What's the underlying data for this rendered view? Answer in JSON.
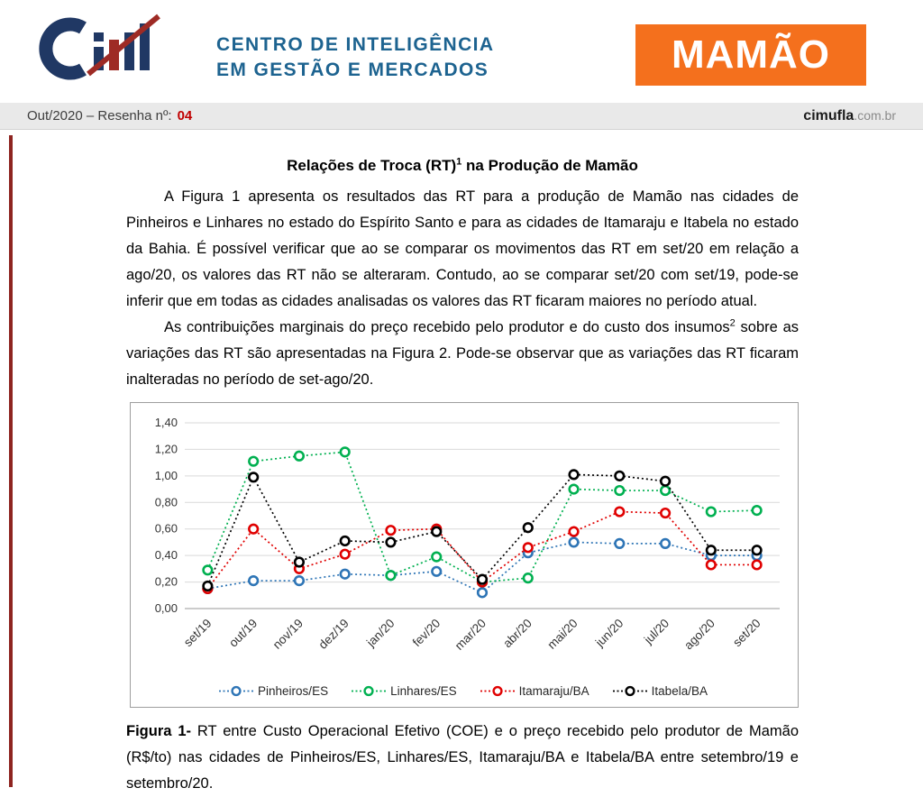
{
  "header": {
    "org_line1": "CENTRO DE INTELIGÊNCIA",
    "org_line2": "EM GESTÃO E MERCADOS",
    "badge": "MAMÃO",
    "logo_name": "CIM"
  },
  "meta": {
    "issue_label": "Out/2020 – Resenha nº:",
    "issue_number": "04",
    "site_name": "cimufla",
    "site_domain": ".com.br"
  },
  "colors": {
    "badge_orange": "#F4701D",
    "brand_blue": "#1D6390",
    "logo_navy": "#203864",
    "logo_red": "#9E2B25",
    "issue_red": "#C00000",
    "accent_rule_red": "#8E2420"
  },
  "article": {
    "title_pre": "Relações de Troca (RT)",
    "title_sup": "1",
    "title_post": " na Produção de Mamão",
    "para1": "A Figura 1 apresenta os resultados das RT para a produção de Mamão nas cidades de Pinheiros e Linhares no estado do Espírito Santo e para as cidades de Itamaraju e Itabela no estado da Bahia. É possível verificar que ao se comparar os movimentos das RT em set/20 em relação a ago/20, os valores das RT não se alteraram. Contudo, ao se comparar set/20 com set/19, pode-se inferir que em todas as cidades analisadas os valores das RT ficaram maiores no período atual.",
    "para2_pre": "As contribuições marginais do preço recebido pelo produtor e do custo dos insumos",
    "para2_sup": "2",
    "para2_post": " sobre as variações das RT são apresentadas na Figura 2. Pode-se observar que as variações das RT ficaram inalteradas no período de set-ago/20.",
    "caption_label": "Figura 1-",
    "caption_text": " RT entre Custo Operacional Efetivo (COE) e o preço recebido pelo produtor de Mamão (R$/to) nas cidades de Pinheiros/ES, Linhares/ES, Itamaraju/BA e Itabela/BA entre setembro/19 e setembro/20."
  },
  "chart_data": {
    "type": "line",
    "line_style": "dotted",
    "marker": "open-circle",
    "grid": true,
    "legend_position": "bottom",
    "x": [
      "set/19",
      "out/19",
      "nov/19",
      "dez/19",
      "jan/20",
      "fev/20",
      "mar/20",
      "abr/20",
      "mai/20",
      "jun/20",
      "jul/20",
      "ago/20",
      "set/20"
    ],
    "ylim": [
      0,
      1.4
    ],
    "ytick_step": 0.2,
    "ytick_labels": [
      "0,00",
      "0,20",
      "0,40",
      "0,60",
      "0,80",
      "1,00",
      "1,20",
      "1,40"
    ],
    "series": [
      {
        "name": "Pinheiros/ES",
        "color": "#2E75B6",
        "values": [
          0.15,
          0.21,
          0.21,
          0.26,
          0.25,
          0.28,
          0.12,
          0.42,
          0.5,
          0.49,
          0.49,
          0.4,
          0.4
        ]
      },
      {
        "name": "Linhares/ES",
        "color": "#00B050",
        "values": [
          0.29,
          1.11,
          1.15,
          1.18,
          0.25,
          0.39,
          0.2,
          0.23,
          0.9,
          0.89,
          0.89,
          0.73,
          0.74
        ]
      },
      {
        "name": "Itamaraju/BA",
        "color": "#E00000",
        "values": [
          0.15,
          0.6,
          0.3,
          0.41,
          0.59,
          0.6,
          0.2,
          0.46,
          0.58,
          0.73,
          0.72,
          0.33,
          0.33
        ]
      },
      {
        "name": "Itabela/BA",
        "color": "#000000",
        "values": [
          0.17,
          0.99,
          0.35,
          0.51,
          0.5,
          0.58,
          0.22,
          0.61,
          1.01,
          1.0,
          0.96,
          0.44,
          0.44
        ]
      }
    ]
  }
}
